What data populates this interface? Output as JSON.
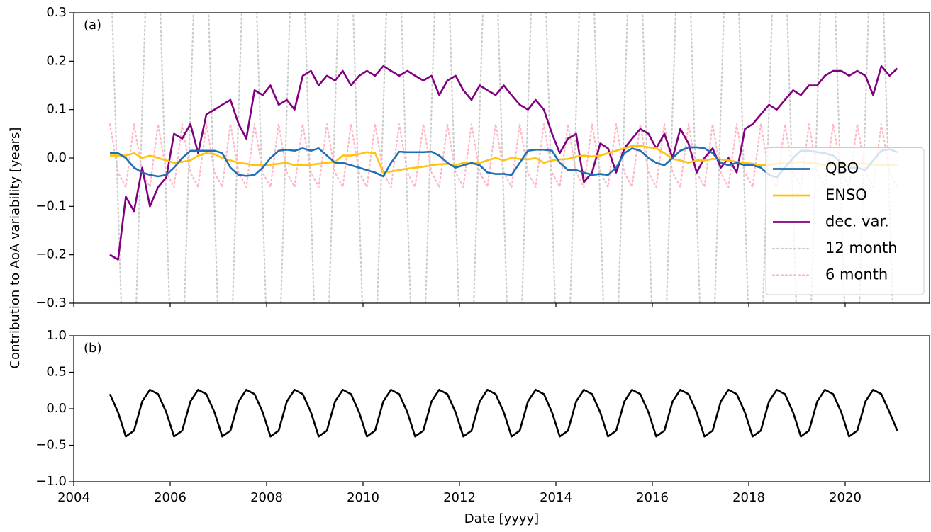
{
  "chart_data": [
    {
      "type": "line",
      "label": "(a)",
      "ylabel": "Contribution to AoA variability [years]",
      "x": [
        2004.75,
        2004.92,
        2005.08,
        2005.25,
        2005.42,
        2005.58,
        2005.75,
        2005.92,
        2006.08,
        2006.25,
        2006.42,
        2006.58,
        2006.75,
        2006.92,
        2007.08,
        2007.25,
        2007.42,
        2007.58,
        2007.75,
        2007.92,
        2008.08,
        2008.25,
        2008.42,
        2008.58,
        2008.75,
        2008.92,
        2009.08,
        2009.25,
        2009.42,
        2009.58,
        2009.75,
        2009.92,
        2010.08,
        2010.25,
        2010.42,
        2010.58,
        2010.75,
        2010.92,
        2011.08,
        2011.25,
        2011.42,
        2011.58,
        2011.75,
        2011.92,
        2012.08,
        2012.25,
        2012.42,
        2012.58,
        2012.75,
        2012.92,
        2013.08,
        2013.25,
        2013.42,
        2013.58,
        2013.75,
        2013.92,
        2014.08,
        2014.25,
        2014.42,
        2014.58,
        2014.75,
        2014.92,
        2015.08,
        2015.25,
        2015.42,
        2015.58,
        2015.75,
        2015.92,
        2016.08,
        2016.25,
        2016.42,
        2016.58,
        2016.75,
        2016.92,
        2017.08,
        2017.25,
        2017.42,
        2017.58,
        2017.75,
        2017.92,
        2018.08,
        2018.25,
        2018.42,
        2018.58,
        2018.75,
        2018.92,
        2019.08,
        2019.25,
        2019.42,
        2019.58,
        2019.75,
        2019.92,
        2020.08,
        2020.25,
        2020.42,
        2020.58,
        2020.75,
        2020.92,
        2021.08
      ],
      "series": [
        {
          "name": "QBO",
          "color": "#1f6fb5",
          "style": "solid",
          "values": [
            0.01,
            0.01,
            0.0,
            -0.02,
            -0.03,
            -0.035,
            -0.038,
            -0.035,
            -0.02,
            0.0,
            0.015,
            0.015,
            0.015,
            0.015,
            0.01,
            -0.02,
            -0.035,
            -0.037,
            -0.035,
            -0.02,
            0.0,
            0.015,
            0.017,
            0.015,
            0.02,
            0.015,
            0.02,
            0.005,
            -0.01,
            -0.01,
            -0.015,
            -0.02,
            -0.025,
            -0.03,
            -0.038,
            -0.01,
            0.013,
            0.012,
            0.012,
            0.012,
            0.013,
            0.005,
            -0.01,
            -0.02,
            -0.015,
            -0.01,
            -0.015,
            -0.03,
            -0.033,
            -0.033,
            -0.035,
            -0.01,
            0.015,
            0.017,
            0.017,
            0.015,
            -0.01,
            -0.025,
            -0.025,
            -0.03,
            -0.035,
            -0.033,
            -0.035,
            -0.02,
            0.01,
            0.02,
            0.015,
            0.0,
            -0.01,
            -0.015,
            0.0,
            0.015,
            0.022,
            0.022,
            0.02,
            0.01,
            -0.01,
            -0.015,
            -0.01,
            -0.015,
            -0.015,
            -0.02,
            -0.035,
            -0.04,
            -0.02,
            0.0,
            0.015,
            0.015,
            0.012,
            0.01,
            0.005,
            -0.01,
            -0.02,
            -0.02,
            -0.025,
            -0.005,
            0.015,
            0.018,
            0.012
          ]
        },
        {
          "name": "ENSO",
          "color": "#ffc20e",
          "style": "solid",
          "values": [
            0.005,
            0.005,
            0.005,
            0.01,
            0.0,
            0.005,
            0.0,
            -0.005,
            -0.01,
            -0.008,
            -0.005,
            0.005,
            0.01,
            0.008,
            0.0,
            -0.005,
            -0.01,
            -0.012,
            -0.015,
            -0.015,
            -0.014,
            -0.012,
            -0.01,
            -0.015,
            -0.015,
            -0.014,
            -0.012,
            -0.01,
            -0.008,
            0.005,
            0.005,
            0.008,
            0.012,
            0.01,
            -0.03,
            -0.028,
            -0.025,
            -0.022,
            -0.02,
            -0.018,
            -0.015,
            -0.013,
            -0.012,
            -0.015,
            -0.01,
            -0.012,
            -0.01,
            -0.005,
            0.0,
            -0.005,
            0.0,
            -0.002,
            -0.003,
            0.0,
            -0.01,
            -0.005,
            -0.003,
            -0.002,
            0.003,
            0.005,
            0.003,
            0.005,
            0.01,
            0.015,
            0.02,
            0.025,
            0.025,
            0.022,
            0.02,
            0.01,
            -0.002,
            -0.005,
            -0.01,
            -0.005,
            -0.005,
            -0.002,
            -0.003,
            -0.005,
            -0.008,
            -0.01,
            -0.012,
            -0.015,
            -0.015,
            -0.012,
            -0.01,
            -0.01,
            -0.008,
            -0.01,
            -0.012,
            -0.015,
            -0.015,
            -0.015,
            -0.015,
            -0.012,
            -0.012,
            -0.015,
            -0.015,
            -0.015,
            -0.015
          ]
        },
        {
          "name": "dec. var.",
          "color": "#800080",
          "style": "solid",
          "values": [
            -0.2,
            -0.21,
            -0.08,
            -0.11,
            -0.02,
            -0.1,
            -0.06,
            -0.04,
            0.05,
            0.04,
            0.07,
            0.01,
            0.09,
            0.1,
            0.11,
            0.12,
            0.07,
            0.04,
            0.14,
            0.13,
            0.15,
            0.11,
            0.12,
            0.1,
            0.17,
            0.18,
            0.15,
            0.17,
            0.16,
            0.18,
            0.15,
            0.17,
            0.18,
            0.17,
            0.19,
            0.18,
            0.17,
            0.18,
            0.17,
            0.16,
            0.17,
            0.13,
            0.16,
            0.17,
            0.14,
            0.12,
            0.15,
            0.14,
            0.13,
            0.15,
            0.13,
            0.11,
            0.1,
            0.12,
            0.1,
            0.05,
            0.01,
            0.04,
            0.05,
            -0.05,
            -0.03,
            0.03,
            0.02,
            -0.03,
            0.02,
            0.04,
            0.06,
            0.05,
            0.02,
            0.05,
            0.0,
            0.06,
            0.03,
            -0.03,
            0.0,
            0.02,
            -0.02,
            0.0,
            -0.03,
            0.06,
            0.07,
            0.09,
            0.11,
            0.1,
            0.12,
            0.14,
            0.13,
            0.15,
            0.15,
            0.17,
            0.18,
            0.18,
            0.17,
            0.18,
            0.17,
            0.13,
            0.19,
            0.17,
            0.185
          ]
        },
        {
          "name": "12 month",
          "color": "#cccccc",
          "style": "dotted",
          "values": [
            0.45,
            -0.1,
            -0.6,
            -0.45,
            0.1,
            0.6,
            0.45,
            -0.1,
            -0.6,
            -0.45,
            0.1,
            0.6,
            0.45,
            -0.1,
            -0.6,
            -0.45,
            0.1,
            0.6,
            0.45,
            -0.1,
            -0.6,
            -0.45,
            0.1,
            0.6,
            0.45,
            -0.1,
            -0.6,
            -0.45,
            0.1,
            0.6,
            0.45,
            -0.1,
            -0.6,
            -0.45,
            0.1,
            0.6,
            0.45,
            -0.1,
            -0.6,
            -0.45,
            0.1,
            0.6,
            0.45,
            -0.1,
            -0.6,
            -0.45,
            0.1,
            0.6,
            0.45,
            -0.1,
            -0.6,
            -0.45,
            0.1,
            0.6,
            0.45,
            -0.1,
            -0.6,
            -0.45,
            0.1,
            0.6,
            0.45,
            -0.1,
            -0.6,
            -0.45,
            0.1,
            0.6,
            0.45,
            -0.1,
            -0.6,
            -0.45,
            0.1,
            0.6,
            0.45,
            -0.1,
            -0.6,
            -0.45,
            0.1,
            0.6,
            0.45,
            -0.1,
            -0.6,
            -0.45,
            0.1,
            0.6,
            0.45,
            -0.1,
            -0.6,
            -0.45,
            0.1,
            0.6,
            0.45,
            -0.1,
            -0.6,
            -0.45,
            0.1,
            0.6,
            0.45,
            -0.1,
            -0.6
          ]
        },
        {
          "name": "6 month",
          "color": "#ffb6c1",
          "style": "dotted",
          "values": [
            0.07,
            -0.03,
            -0.06,
            0.07,
            -0.03,
            -0.06,
            0.07,
            -0.03,
            -0.06,
            0.07,
            -0.03,
            -0.06,
            0.07,
            -0.03,
            -0.06,
            0.07,
            -0.03,
            -0.06,
            0.07,
            -0.03,
            -0.06,
            0.07,
            -0.03,
            -0.06,
            0.07,
            -0.03,
            -0.06,
            0.07,
            -0.03,
            -0.06,
            0.07,
            -0.03,
            -0.06,
            0.07,
            -0.03,
            -0.06,
            0.07,
            -0.03,
            -0.06,
            0.07,
            -0.03,
            -0.06,
            0.07,
            -0.03,
            -0.06,
            0.07,
            -0.03,
            -0.06,
            0.07,
            -0.03,
            -0.06,
            0.07,
            -0.03,
            -0.06,
            0.07,
            -0.03,
            -0.06,
            0.07,
            -0.03,
            -0.06,
            0.07,
            -0.03,
            -0.06,
            0.07,
            -0.03,
            -0.06,
            0.07,
            -0.03,
            -0.06,
            0.07,
            -0.03,
            -0.06,
            0.07,
            -0.03,
            -0.06,
            0.07,
            -0.03,
            -0.06,
            0.07,
            -0.03,
            -0.06,
            0.07,
            -0.03,
            -0.06,
            0.07,
            -0.03,
            -0.06,
            0.07,
            -0.03,
            -0.06,
            0.07,
            -0.03,
            -0.06,
            0.07,
            -0.03,
            -0.06,
            0.07,
            -0.03,
            -0.06
          ]
        }
      ],
      "xlim": [
        2004,
        2021.75
      ],
      "xticks": [
        2004,
        2006,
        2008,
        2010,
        2012,
        2014,
        2016,
        2018,
        2020
      ],
      "ylim": [
        -0.3,
        0.3
      ],
      "yticks": [
        {
          "value": -0.3,
          "label": "−0.3"
        },
        {
          "value": -0.2,
          "label": "−0.2"
        },
        {
          "value": -0.1,
          "label": "−0.1"
        },
        {
          "value": 0,
          "label": "0.0"
        },
        {
          "value": 0.1,
          "label": "0.1"
        },
        {
          "value": 0.2,
          "label": "0.2"
        },
        {
          "value": 0.3,
          "label": "0.3"
        }
      ],
      "legend": "lower right"
    },
    {
      "type": "line",
      "label": "(b)",
      "xlabel": "Date [yyyy]",
      "x": [
        2004.75,
        2004.92,
        2005.08,
        2005.25,
        2005.42,
        2005.58,
        2005.75,
        2005.92,
        2006.08,
        2006.25,
        2006.42,
        2006.58,
        2006.75,
        2006.92,
        2007.08,
        2007.25,
        2007.42,
        2007.58,
        2007.75,
        2007.92,
        2008.08,
        2008.25,
        2008.42,
        2008.58,
        2008.75,
        2008.92,
        2009.08,
        2009.25,
        2009.42,
        2009.58,
        2009.75,
        2009.92,
        2010.08,
        2010.25,
        2010.42,
        2010.58,
        2010.75,
        2010.92,
        2011.08,
        2011.25,
        2011.42,
        2011.58,
        2011.75,
        2011.92,
        2012.08,
        2012.25,
        2012.42,
        2012.58,
        2012.75,
        2012.92,
        2013.08,
        2013.25,
        2013.42,
        2013.58,
        2013.75,
        2013.92,
        2014.08,
        2014.25,
        2014.42,
        2014.58,
        2014.75,
        2014.92,
        2015.08,
        2015.25,
        2015.42,
        2015.58,
        2015.75,
        2015.92,
        2016.08,
        2016.25,
        2016.42,
        2016.58,
        2016.75,
        2016.92,
        2017.08,
        2017.25,
        2017.42,
        2017.58,
        2017.75,
        2017.92,
        2018.08,
        2018.25,
        2018.42,
        2018.58,
        2018.75,
        2018.92,
        2019.08,
        2019.25,
        2019.42,
        2019.58,
        2019.75,
        2019.92,
        2020.08,
        2020.25,
        2020.42,
        2020.58,
        2020.75,
        2020.92,
        2021.08
      ],
      "series": [
        {
          "color": "#000000",
          "style": "solid",
          "values": [
            0.2,
            -0.05,
            -0.38,
            -0.3,
            0.1,
            0.26,
            0.2,
            -0.05,
            -0.38,
            -0.3,
            0.1,
            0.26,
            0.2,
            -0.05,
            -0.38,
            -0.3,
            0.1,
            0.26,
            0.2,
            -0.05,
            -0.38,
            -0.3,
            0.1,
            0.26,
            0.2,
            -0.05,
            -0.38,
            -0.3,
            0.1,
            0.26,
            0.2,
            -0.05,
            -0.38,
            -0.3,
            0.1,
            0.26,
            0.2,
            -0.05,
            -0.38,
            -0.3,
            0.1,
            0.26,
            0.2,
            -0.05,
            -0.38,
            -0.3,
            0.1,
            0.26,
            0.2,
            -0.05,
            -0.38,
            -0.3,
            0.1,
            0.26,
            0.2,
            -0.05,
            -0.38,
            -0.3,
            0.1,
            0.26,
            0.2,
            -0.05,
            -0.38,
            -0.3,
            0.1,
            0.26,
            0.2,
            -0.05,
            -0.38,
            -0.3,
            0.1,
            0.26,
            0.2,
            -0.05,
            -0.38,
            -0.3,
            0.1,
            0.26,
            0.2,
            -0.05,
            -0.38,
            -0.3,
            0.1,
            0.26,
            0.2,
            -0.05,
            -0.38,
            -0.3,
            0.1,
            0.26,
            0.2,
            -0.05,
            -0.38,
            -0.3,
            0.1,
            0.26,
            0.2,
            -0.05,
            -0.3
          ]
        }
      ],
      "xlim": [
        2004,
        2021.75
      ],
      "xticks": [
        2004,
        2006,
        2008,
        2010,
        2012,
        2014,
        2016,
        2018,
        2020
      ],
      "ylim": [
        -1,
        1
      ],
      "yticks": [
        {
          "value": -1,
          "label": "−1.0"
        },
        {
          "value": -0.5,
          "label": "−0.5"
        },
        {
          "value": 0,
          "label": "0.0"
        },
        {
          "value": 0.5,
          "label": "0.5"
        },
        {
          "value": 1,
          "label": "1.0"
        }
      ]
    }
  ]
}
